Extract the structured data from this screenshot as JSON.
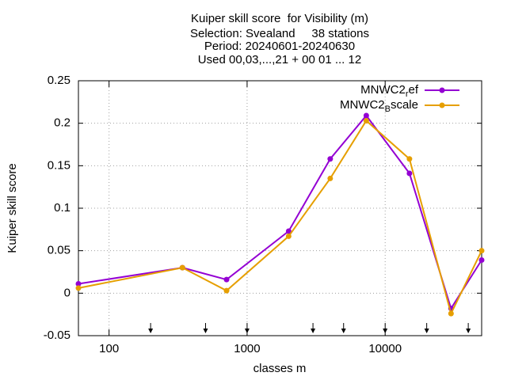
{
  "chart_data": {
    "type": "line",
    "title": [
      "Kuiper skill score  for Visibility (m)",
      "Selection: Svealand     38 stations",
      "Period: 20240601-20240630",
      "Used 00,03,...,21 + 00 01 ... 12"
    ],
    "x_label": "classes m",
    "y_label": "Kuiper skill score",
    "x": [
      60,
      340,
      710,
      2000,
      4000,
      7300,
      15000,
      30000,
      50000
    ],
    "series": [
      {
        "name": "MNWC2_ref",
        "color": "#9400d3",
        "values": [
          0.011,
          0.03,
          0.016,
          0.073,
          0.158,
          0.209,
          0.141,
          -0.018,
          0.039
        ]
      },
      {
        "name": "MNWC2_Bscale",
        "color": "#e69f00",
        "values": [
          0.006,
          0.03,
          0.003,
          0.067,
          0.135,
          0.203,
          0.158,
          -0.024,
          0.05
        ]
      }
    ],
    "class_limits": [
      200,
      500,
      1000,
      3000,
      5000,
      10000,
      20000,
      40000
    ],
    "xlim": [
      60,
      50000
    ],
    "xticks": [
      100,
      1000,
      10000
    ],
    "xlog": true,
    "ylim": [
      -0.05,
      0.25
    ],
    "yticks": [
      -0.05,
      0,
      0.05,
      0.1,
      0.15,
      0.2,
      0.25
    ],
    "grid": true,
    "legend": "top-right"
  }
}
